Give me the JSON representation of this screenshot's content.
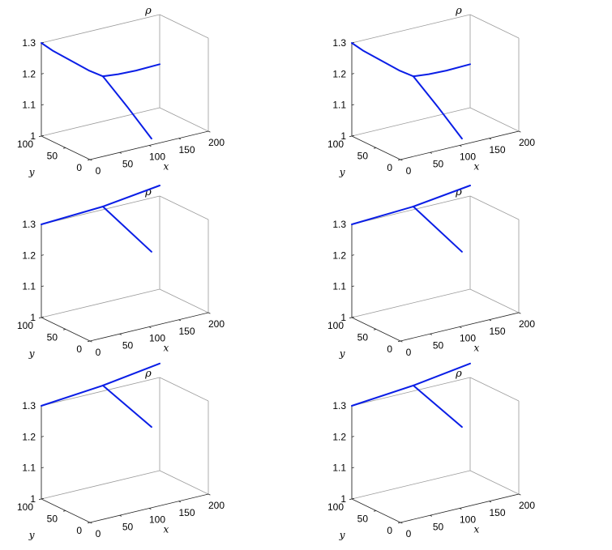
{
  "chart_data": [
    {
      "type": "line3d",
      "title": "ρ",
      "xlabel": "x",
      "ylabel": "y",
      "xlim": [
        0,
        200
      ],
      "ylim": [
        0,
        100
      ],
      "zlim": [
        1,
        1.3
      ],
      "xticks": [
        "0",
        "50",
        "100",
        "150",
        "200"
      ],
      "yticks": [
        "0",
        "50",
        "100"
      ],
      "zticks": [
        "1",
        "1.1",
        "1.2",
        "1.3"
      ],
      "grid": false,
      "box": true,
      "series": [
        {
          "x": [
            0,
            20,
            50,
            80,
            104
          ],
          "y": [
            100,
            100,
            100,
            100,
            100
          ],
          "z": [
            1.3,
            1.265,
            1.22,
            1.175,
            1.145
          ]
        },
        {
          "x": [
            104,
            130,
            160,
            200
          ],
          "y": [
            100,
            100,
            100,
            100
          ],
          "z": [
            1.145,
            1.14,
            1.138,
            1.14
          ]
        },
        {
          "x": [
            104,
            104,
            104
          ],
          "y": [
            100,
            50,
            0
          ],
          "z": [
            1.145,
            1.085,
            1.02
          ]
        }
      ]
    },
    {
      "type": "line3d",
      "title": "ρ",
      "xlabel": "x",
      "ylabel": "y",
      "xlim": [
        0,
        200
      ],
      "ylim": [
        0,
        100
      ],
      "zlim": [
        1,
        1.3
      ],
      "xticks": [
        "0",
        "50",
        "100",
        "150",
        "200"
      ],
      "yticks": [
        "0",
        "50",
        "100"
      ],
      "zticks": [
        "1",
        "1.1",
        "1.2",
        "1.3"
      ],
      "grid": false,
      "box": true,
      "series": [
        {
          "x": [
            0,
            20,
            50,
            80,
            104
          ],
          "y": [
            100,
            100,
            100,
            100,
            100
          ],
          "z": [
            1.3,
            1.265,
            1.22,
            1.175,
            1.145
          ]
        },
        {
          "x": [
            104,
            130,
            160,
            200
          ],
          "y": [
            100,
            100,
            100,
            100
          ],
          "z": [
            1.145,
            1.14,
            1.138,
            1.14
          ]
        },
        {
          "x": [
            104,
            104,
            104
          ],
          "y": [
            100,
            50,
            0
          ],
          "z": [
            1.145,
            1.085,
            1.02
          ]
        }
      ]
    },
    {
      "type": "line3d",
      "title": "ρ",
      "xlabel": "x",
      "ylabel": "y",
      "xlim": [
        0,
        200
      ],
      "ylim": [
        0,
        100
      ],
      "zlim": [
        1,
        1.3
      ],
      "xticks": [
        "0",
        "50",
        "100",
        "150",
        "200"
      ],
      "yticks": [
        "0",
        "50",
        "100"
      ],
      "zticks": [
        "1",
        "1.1",
        "1.2",
        "1.3"
      ],
      "grid": false,
      "box": true,
      "series": [
        {
          "x": [
            0,
            104
          ],
          "y": [
            100,
            100
          ],
          "z": [
            1.3,
            1.31
          ]
        },
        {
          "x": [
            104,
            200
          ],
          "y": [
            100,
            100
          ],
          "z": [
            1.31,
            1.334
          ]
        },
        {
          "x": [
            104,
            104
          ],
          "y": [
            100,
            0
          ],
          "z": [
            1.31,
            1.24
          ]
        }
      ]
    },
    {
      "type": "line3d",
      "title": "ρ",
      "xlabel": "x",
      "ylabel": "y",
      "xlim": [
        0,
        200
      ],
      "ylim": [
        0,
        100
      ],
      "zlim": [
        1,
        1.3
      ],
      "xticks": [
        "0",
        "50",
        "100",
        "150",
        "200"
      ],
      "yticks": [
        "0",
        "50",
        "100"
      ],
      "zticks": [
        "1",
        "1.1",
        "1.2",
        "1.3"
      ],
      "grid": false,
      "box": true,
      "series": [
        {
          "x": [
            0,
            104
          ],
          "y": [
            100,
            100
          ],
          "z": [
            1.3,
            1.31
          ]
        },
        {
          "x": [
            104,
            200
          ],
          "y": [
            100,
            100
          ],
          "z": [
            1.31,
            1.334
          ]
        },
        {
          "x": [
            104,
            104
          ],
          "y": [
            100,
            0
          ],
          "z": [
            1.31,
            1.24
          ]
        }
      ]
    },
    {
      "type": "line3d",
      "title": "ρ",
      "xlabel": "x",
      "ylabel": "y",
      "xlim": [
        0,
        200
      ],
      "ylim": [
        0,
        100
      ],
      "zlim": [
        1,
        1.3
      ],
      "xticks": [
        "0",
        "50",
        "100",
        "150",
        "200"
      ],
      "yticks": [
        "0",
        "50",
        "100"
      ],
      "zticks": [
        "1",
        "1.1",
        "1.2",
        "1.3"
      ],
      "grid": false,
      "box": true,
      "series": [
        {
          "x": [
            0,
            104
          ],
          "y": [
            100,
            100
          ],
          "z": [
            1.3,
            1.318
          ]
        },
        {
          "x": [
            104,
            200
          ],
          "y": [
            100,
            100
          ],
          "z": [
            1.318,
            1.345
          ]
        },
        {
          "x": [
            104,
            104
          ],
          "y": [
            100,
            0
          ],
          "z": [
            1.318,
            1.26
          ]
        }
      ]
    },
    {
      "type": "line3d",
      "title": "ρ",
      "xlabel": "x",
      "ylabel": "y",
      "xlim": [
        0,
        200
      ],
      "ylim": [
        0,
        100
      ],
      "zlim": [
        1,
        1.3
      ],
      "xticks": [
        "0",
        "50",
        "100",
        "150",
        "200"
      ],
      "yticks": [
        "0",
        "50",
        "100"
      ],
      "zticks": [
        "1",
        "1.1",
        "1.2",
        "1.3"
      ],
      "grid": false,
      "box": true,
      "series": [
        {
          "x": [
            0,
            104
          ],
          "y": [
            100,
            100
          ],
          "z": [
            1.3,
            1.318
          ]
        },
        {
          "x": [
            104,
            200
          ],
          "y": [
            100,
            100
          ],
          "z": [
            1.318,
            1.345
          ]
        },
        {
          "x": [
            104,
            104
          ],
          "y": [
            100,
            0
          ],
          "z": [
            1.318,
            1.26
          ]
        }
      ]
    }
  ]
}
